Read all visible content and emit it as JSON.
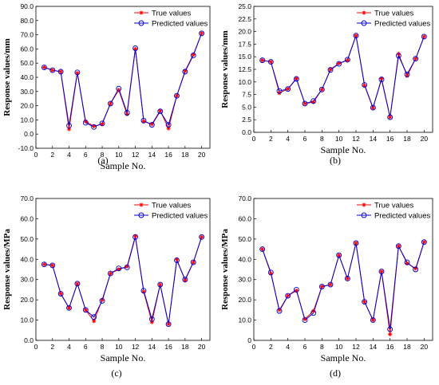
{
  "legend": {
    "true_label": "True values",
    "pred_label": "Predicted values",
    "true_color": "#ff0000",
    "pred_color": "#0000cc"
  },
  "xlabel": "Sample No.",
  "chart_data": [
    {
      "type": "line",
      "panel_label": "(a)",
      "ylabel": "Response values/mm",
      "ylim": [
        -10,
        90
      ],
      "yticks": [
        -10,
        0,
        10,
        20,
        30,
        40,
        50,
        60,
        70,
        80,
        90
      ],
      "ytick_labels": [
        "-10.0",
        "0.0",
        "10.0",
        "20.0",
        "30.0",
        "40.0",
        "50.0",
        "60.0",
        "70.0",
        "80.0",
        "90.0"
      ],
      "xlim": [
        0,
        21
      ],
      "xticks": [
        0,
        2,
        4,
        6,
        8,
        10,
        12,
        14,
        16,
        18,
        20
      ],
      "x": [
        1,
        2,
        3,
        4,
        5,
        6,
        7,
        8,
        9,
        10,
        11,
        12,
        13,
        14,
        15,
        16,
        17,
        18,
        19,
        20
      ],
      "series": [
        {
          "name": "True values",
          "values": [
            47,
            45,
            44,
            3.5,
            43,
            9,
            5.5,
            7,
            21.5,
            31,
            14,
            60,
            9,
            7,
            16.5,
            4,
            27,
            44.5,
            56,
            71
          ]
        },
        {
          "name": "Predicted values",
          "values": [
            47,
            45,
            44,
            6,
            43.5,
            8,
            5,
            7.5,
            21.5,
            32,
            15,
            60.5,
            9.5,
            6.5,
            16,
            6.5,
            27,
            44,
            55.5,
            71
          ]
        }
      ]
    },
    {
      "type": "line",
      "panel_label": "(b)",
      "ylabel": "Response values/mm",
      "ylim": [
        0,
        25
      ],
      "yticks": [
        0,
        2.5,
        5,
        7.5,
        10,
        12.5,
        15,
        17.5,
        20,
        22.5,
        25
      ],
      "ytick_labels": [
        "0.0",
        "2.5",
        "5.0",
        "7.5",
        "10.0",
        "12.5",
        "15.0",
        "17.5",
        "20.0",
        "22.5",
        "25.0"
      ],
      "xlim": [
        0,
        21
      ],
      "xticks": [
        0,
        2,
        4,
        6,
        8,
        10,
        12,
        14,
        16,
        18,
        20
      ],
      "x": [
        1,
        2,
        3,
        4,
        5,
        6,
        7,
        8,
        9,
        10,
        11,
        12,
        13,
        14,
        15,
        16,
        17,
        18,
        19,
        20
      ],
      "series": [
        {
          "name": "True values",
          "values": [
            14.3,
            14.0,
            7.8,
            8.6,
            10.7,
            5.7,
            6.0,
            8.5,
            12.5,
            13.7,
            14.3,
            19.2,
            9.3,
            4.8,
            10.7,
            3.0,
            15.6,
            11.2,
            14.6,
            19.0
          ]
        },
        {
          "name": "Predicted values",
          "values": [
            14.3,
            14.0,
            8.2,
            8.6,
            10.6,
            5.7,
            6.2,
            8.5,
            12.4,
            13.6,
            14.4,
            19.2,
            9.4,
            4.9,
            10.5,
            3.0,
            15.2,
            11.5,
            14.6,
            19.0
          ]
        }
      ]
    },
    {
      "type": "line",
      "panel_label": "(c)",
      "ylabel": "Response values/MPa",
      "ylim": [
        0,
        70
      ],
      "yticks": [
        0,
        10,
        20,
        30,
        40,
        50,
        60,
        70
      ],
      "ytick_labels": [
        "0.0",
        "10.0",
        "20.0",
        "30.0",
        "40.0",
        "50.0",
        "60.0",
        "70.0"
      ],
      "xlim": [
        0,
        21
      ],
      "xticks": [
        0,
        2,
        4,
        6,
        8,
        10,
        12,
        14,
        16,
        18,
        20
      ],
      "x": [
        1,
        2,
        3,
        4,
        5,
        6,
        7,
        8,
        9,
        10,
        11,
        12,
        13,
        14,
        15,
        16,
        17,
        18,
        19,
        20
      ],
      "series": [
        {
          "name": "True values",
          "values": [
            37.5,
            37,
            23,
            16,
            28,
            15,
            9.5,
            20,
            33,
            35,
            36.5,
            51.5,
            24,
            9,
            27.5,
            8,
            40,
            29.5,
            38.5,
            51
          ]
        },
        {
          "name": "Predicted values",
          "values": [
            37.5,
            37,
            23,
            16,
            28,
            15,
            11.5,
            19.5,
            33,
            35.5,
            36,
            51,
            24.5,
            10.5,
            27.5,
            8,
            39.5,
            30,
            38.5,
            51
          ]
        }
      ]
    },
    {
      "type": "line",
      "panel_label": "(d)",
      "ylabel": "Response values/MPa",
      "ylim": [
        0,
        70
      ],
      "yticks": [
        0,
        10,
        20,
        30,
        40,
        50,
        60,
        70
      ],
      "ytick_labels": [
        "0",
        "10.0",
        "20.0",
        "30.0",
        "40.0",
        "50.0",
        "60.0",
        "70.0"
      ],
      "xlim": [
        0,
        21
      ],
      "xticks": [
        0,
        2,
        4,
        6,
        8,
        10,
        12,
        14,
        16,
        18,
        20
      ],
      "x": [
        1,
        2,
        3,
        4,
        5,
        6,
        7,
        8,
        9,
        10,
        11,
        12,
        13,
        14,
        15,
        16,
        17,
        18,
        19,
        20
      ],
      "series": [
        {
          "name": "True values",
          "values": [
            45,
            33,
            15,
            22,
            24.5,
            10.5,
            14.5,
            26.5,
            27.5,
            42,
            30.5,
            48,
            19,
            10,
            34,
            3,
            46.5,
            38,
            35.5,
            48.5
          ]
        },
        {
          "name": "Predicted values",
          "values": [
            45,
            33.5,
            14.5,
            22,
            25,
            10,
            13.5,
            26.5,
            27.5,
            42,
            30.5,
            48,
            19,
            10,
            34,
            5.5,
            46.5,
            38.5,
            35,
            48.5
          ]
        }
      ]
    }
  ]
}
